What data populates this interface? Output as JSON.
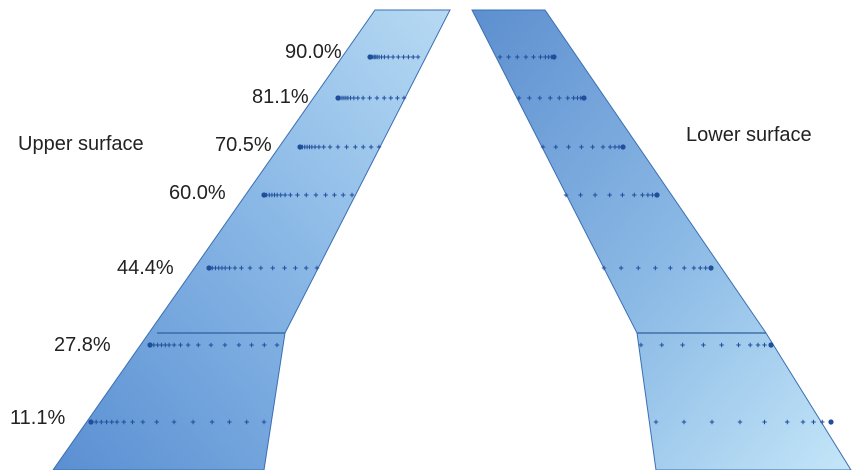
{
  "upper_surface": {
    "title": "Upper surface",
    "stations": [
      {
        "label": "90.0%"
      },
      {
        "label": "81.1%"
      },
      {
        "label": "70.5%"
      },
      {
        "label": "60.0%"
      },
      {
        "label": "44.4%"
      },
      {
        "label": "27.8%"
      },
      {
        "label": "11.1%"
      }
    ]
  },
  "lower_surface": {
    "title": "Lower surface"
  },
  "colors": {
    "wing_fill_dark": "#5d8fd0",
    "wing_fill_light": "#b9dcf3",
    "wing_edge": "#3a6fb3",
    "pressure_tap": "#1f4e9a",
    "label_text": "#222222"
  }
}
